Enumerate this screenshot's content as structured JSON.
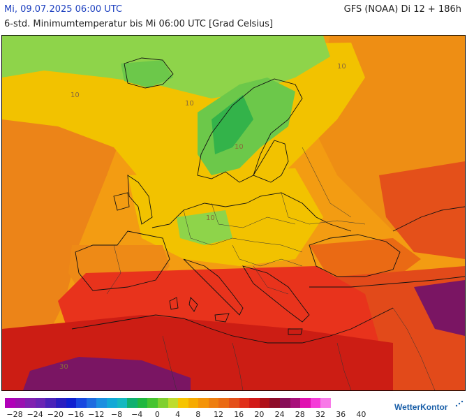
{
  "header": {
    "valid_time": "Mi, 09.07.2025 06:00 UTC",
    "model_run": "GFS (NOAA) Di 12 + 186h",
    "parameter": "6-std. Minimumtemperatur bis Mi 06:00 UTC [Grad Celsius]"
  },
  "map": {
    "contour_labels": [
      "10",
      "10",
      "10",
      "10",
      "10",
      "30"
    ],
    "colors": {
      "cold_green": "#33b34a",
      "light_green": "#8ed44a",
      "yellow": "#f2c200",
      "orange": "#f39c12",
      "dark_orange": "#ea7a16",
      "red": "#e8331c",
      "dark_red": "#cc1d14",
      "purple": "#7a1563"
    }
  },
  "color_scale": {
    "labels": [
      "−28",
      "−24",
      "−20",
      "−16",
      "−12",
      "−8",
      "−4",
      "0",
      "4",
      "8",
      "12",
      "16",
      "20",
      "24",
      "28",
      "32",
      "36",
      "40"
    ],
    "colors": [
      "#b000b8",
      "#9a10b0",
      "#8020b0",
      "#6a24b4",
      "#4a22b8",
      "#2a1ec0",
      "#1020d0",
      "#1848e0",
      "#1e6ce0",
      "#1b8fe0",
      "#12a8d6",
      "#15b8c0",
      "#10b070",
      "#20b840",
      "#46c430",
      "#7fd030",
      "#bedc2e",
      "#f6c400",
      "#f6aa00",
      "#f49408",
      "#ee7e10",
      "#ea6a14",
      "#e4501a",
      "#e0301a",
      "#d21a18",
      "#b01018",
      "#8e0c28",
      "#880e58",
      "#a8107a",
      "#e010b0",
      "#f53cd8",
      "#f87ae8"
    ]
  },
  "logo": {
    "text": "WetterKontor"
  }
}
